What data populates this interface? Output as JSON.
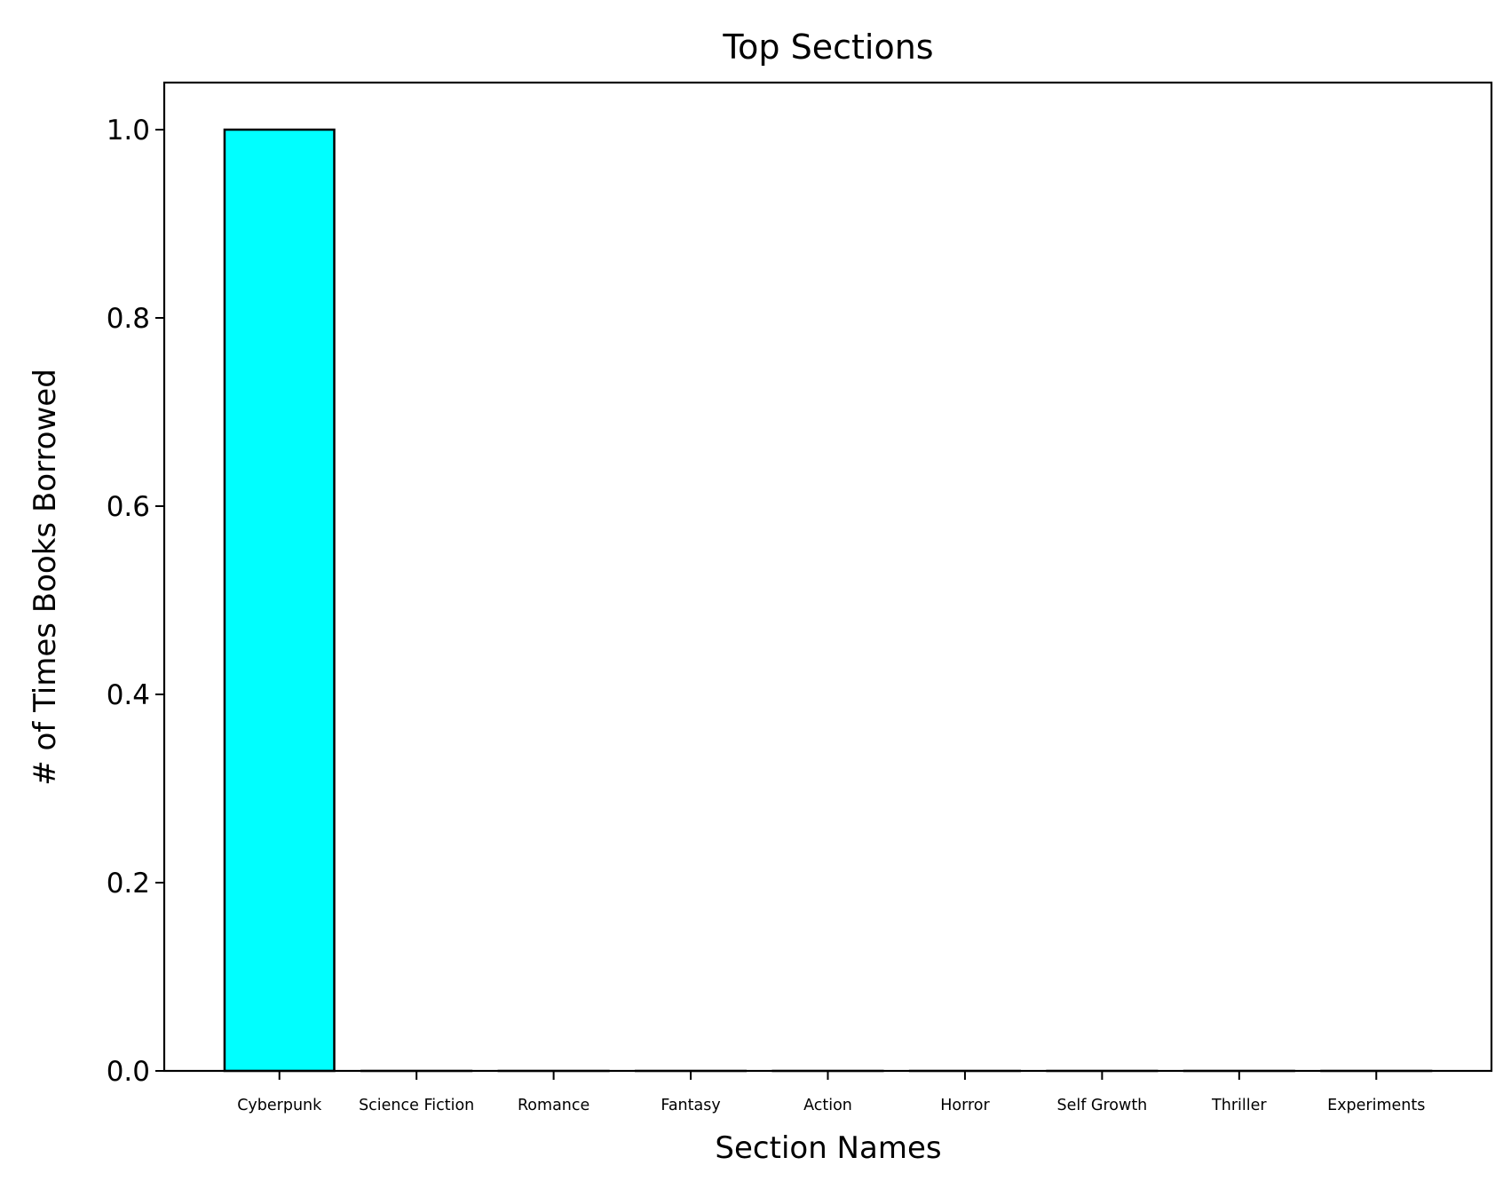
{
  "chart_data": {
    "type": "bar",
    "title": "Top Sections",
    "xlabel": "Section Names",
    "ylabel": "# of Times Books Borrowed",
    "categories": [
      "Cyberpunk",
      "Science Fiction",
      "Romance",
      "Fantasy",
      "Action",
      "Horror",
      "Self Growth",
      "Thriller",
      "Experiments"
    ],
    "values": [
      1,
      0,
      0,
      0,
      0,
      0,
      0,
      0,
      0
    ],
    "ylim": [
      0,
      1.05
    ],
    "yticks": [
      0.0,
      0.2,
      0.4,
      0.6,
      0.8,
      1.0
    ],
    "ytick_labels": [
      "0.0",
      "0.2",
      "0.4",
      "0.6",
      "0.8",
      "1.0"
    ],
    "grid": false,
    "bar_color": "#00ffff",
    "edge_color": "#000000"
  }
}
